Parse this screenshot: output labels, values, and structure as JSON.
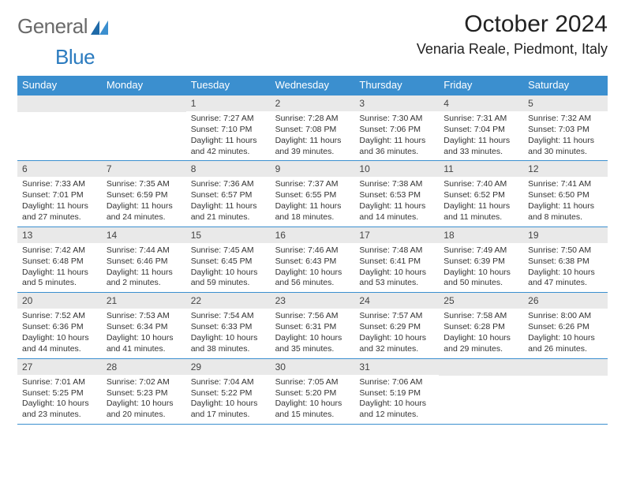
{
  "brand": {
    "part1": "General",
    "part2": "Blue"
  },
  "title": "October 2024",
  "location": "Venaria Reale, Piedmont, Italy",
  "colors": {
    "header_bar": "#3b8fcf",
    "daynum_bg": "#e9e9e9",
    "border": "#3b8fcf",
    "logo_gray": "#6a6a6a",
    "logo_blue": "#2b7bbf"
  },
  "weekdays": [
    "Sunday",
    "Monday",
    "Tuesday",
    "Wednesday",
    "Thursday",
    "Friday",
    "Saturday"
  ],
  "weeks": [
    [
      null,
      null,
      {
        "n": "1",
        "sr": "Sunrise: 7:27 AM",
        "ss": "Sunset: 7:10 PM",
        "dl": "Daylight: 11 hours and 42 minutes."
      },
      {
        "n": "2",
        "sr": "Sunrise: 7:28 AM",
        "ss": "Sunset: 7:08 PM",
        "dl": "Daylight: 11 hours and 39 minutes."
      },
      {
        "n": "3",
        "sr": "Sunrise: 7:30 AM",
        "ss": "Sunset: 7:06 PM",
        "dl": "Daylight: 11 hours and 36 minutes."
      },
      {
        "n": "4",
        "sr": "Sunrise: 7:31 AM",
        "ss": "Sunset: 7:04 PM",
        "dl": "Daylight: 11 hours and 33 minutes."
      },
      {
        "n": "5",
        "sr": "Sunrise: 7:32 AM",
        "ss": "Sunset: 7:03 PM",
        "dl": "Daylight: 11 hours and 30 minutes."
      }
    ],
    [
      {
        "n": "6",
        "sr": "Sunrise: 7:33 AM",
        "ss": "Sunset: 7:01 PM",
        "dl": "Daylight: 11 hours and 27 minutes."
      },
      {
        "n": "7",
        "sr": "Sunrise: 7:35 AM",
        "ss": "Sunset: 6:59 PM",
        "dl": "Daylight: 11 hours and 24 minutes."
      },
      {
        "n": "8",
        "sr": "Sunrise: 7:36 AM",
        "ss": "Sunset: 6:57 PM",
        "dl": "Daylight: 11 hours and 21 minutes."
      },
      {
        "n": "9",
        "sr": "Sunrise: 7:37 AM",
        "ss": "Sunset: 6:55 PM",
        "dl": "Daylight: 11 hours and 18 minutes."
      },
      {
        "n": "10",
        "sr": "Sunrise: 7:38 AM",
        "ss": "Sunset: 6:53 PM",
        "dl": "Daylight: 11 hours and 14 minutes."
      },
      {
        "n": "11",
        "sr": "Sunrise: 7:40 AM",
        "ss": "Sunset: 6:52 PM",
        "dl": "Daylight: 11 hours and 11 minutes."
      },
      {
        "n": "12",
        "sr": "Sunrise: 7:41 AM",
        "ss": "Sunset: 6:50 PM",
        "dl": "Daylight: 11 hours and 8 minutes."
      }
    ],
    [
      {
        "n": "13",
        "sr": "Sunrise: 7:42 AM",
        "ss": "Sunset: 6:48 PM",
        "dl": "Daylight: 11 hours and 5 minutes."
      },
      {
        "n": "14",
        "sr": "Sunrise: 7:44 AM",
        "ss": "Sunset: 6:46 PM",
        "dl": "Daylight: 11 hours and 2 minutes."
      },
      {
        "n": "15",
        "sr": "Sunrise: 7:45 AM",
        "ss": "Sunset: 6:45 PM",
        "dl": "Daylight: 10 hours and 59 minutes."
      },
      {
        "n": "16",
        "sr": "Sunrise: 7:46 AM",
        "ss": "Sunset: 6:43 PM",
        "dl": "Daylight: 10 hours and 56 minutes."
      },
      {
        "n": "17",
        "sr": "Sunrise: 7:48 AM",
        "ss": "Sunset: 6:41 PM",
        "dl": "Daylight: 10 hours and 53 minutes."
      },
      {
        "n": "18",
        "sr": "Sunrise: 7:49 AM",
        "ss": "Sunset: 6:39 PM",
        "dl": "Daylight: 10 hours and 50 minutes."
      },
      {
        "n": "19",
        "sr": "Sunrise: 7:50 AM",
        "ss": "Sunset: 6:38 PM",
        "dl": "Daylight: 10 hours and 47 minutes."
      }
    ],
    [
      {
        "n": "20",
        "sr": "Sunrise: 7:52 AM",
        "ss": "Sunset: 6:36 PM",
        "dl": "Daylight: 10 hours and 44 minutes."
      },
      {
        "n": "21",
        "sr": "Sunrise: 7:53 AM",
        "ss": "Sunset: 6:34 PM",
        "dl": "Daylight: 10 hours and 41 minutes."
      },
      {
        "n": "22",
        "sr": "Sunrise: 7:54 AM",
        "ss": "Sunset: 6:33 PM",
        "dl": "Daylight: 10 hours and 38 minutes."
      },
      {
        "n": "23",
        "sr": "Sunrise: 7:56 AM",
        "ss": "Sunset: 6:31 PM",
        "dl": "Daylight: 10 hours and 35 minutes."
      },
      {
        "n": "24",
        "sr": "Sunrise: 7:57 AM",
        "ss": "Sunset: 6:29 PM",
        "dl": "Daylight: 10 hours and 32 minutes."
      },
      {
        "n": "25",
        "sr": "Sunrise: 7:58 AM",
        "ss": "Sunset: 6:28 PM",
        "dl": "Daylight: 10 hours and 29 minutes."
      },
      {
        "n": "26",
        "sr": "Sunrise: 8:00 AM",
        "ss": "Sunset: 6:26 PM",
        "dl": "Daylight: 10 hours and 26 minutes."
      }
    ],
    [
      {
        "n": "27",
        "sr": "Sunrise: 7:01 AM",
        "ss": "Sunset: 5:25 PM",
        "dl": "Daylight: 10 hours and 23 minutes."
      },
      {
        "n": "28",
        "sr": "Sunrise: 7:02 AM",
        "ss": "Sunset: 5:23 PM",
        "dl": "Daylight: 10 hours and 20 minutes."
      },
      {
        "n": "29",
        "sr": "Sunrise: 7:04 AM",
        "ss": "Sunset: 5:22 PM",
        "dl": "Daylight: 10 hours and 17 minutes."
      },
      {
        "n": "30",
        "sr": "Sunrise: 7:05 AM",
        "ss": "Sunset: 5:20 PM",
        "dl": "Daylight: 10 hours and 15 minutes."
      },
      {
        "n": "31",
        "sr": "Sunrise: 7:06 AM",
        "ss": "Sunset: 5:19 PM",
        "dl": "Daylight: 10 hours and 12 minutes."
      },
      null,
      null
    ]
  ]
}
